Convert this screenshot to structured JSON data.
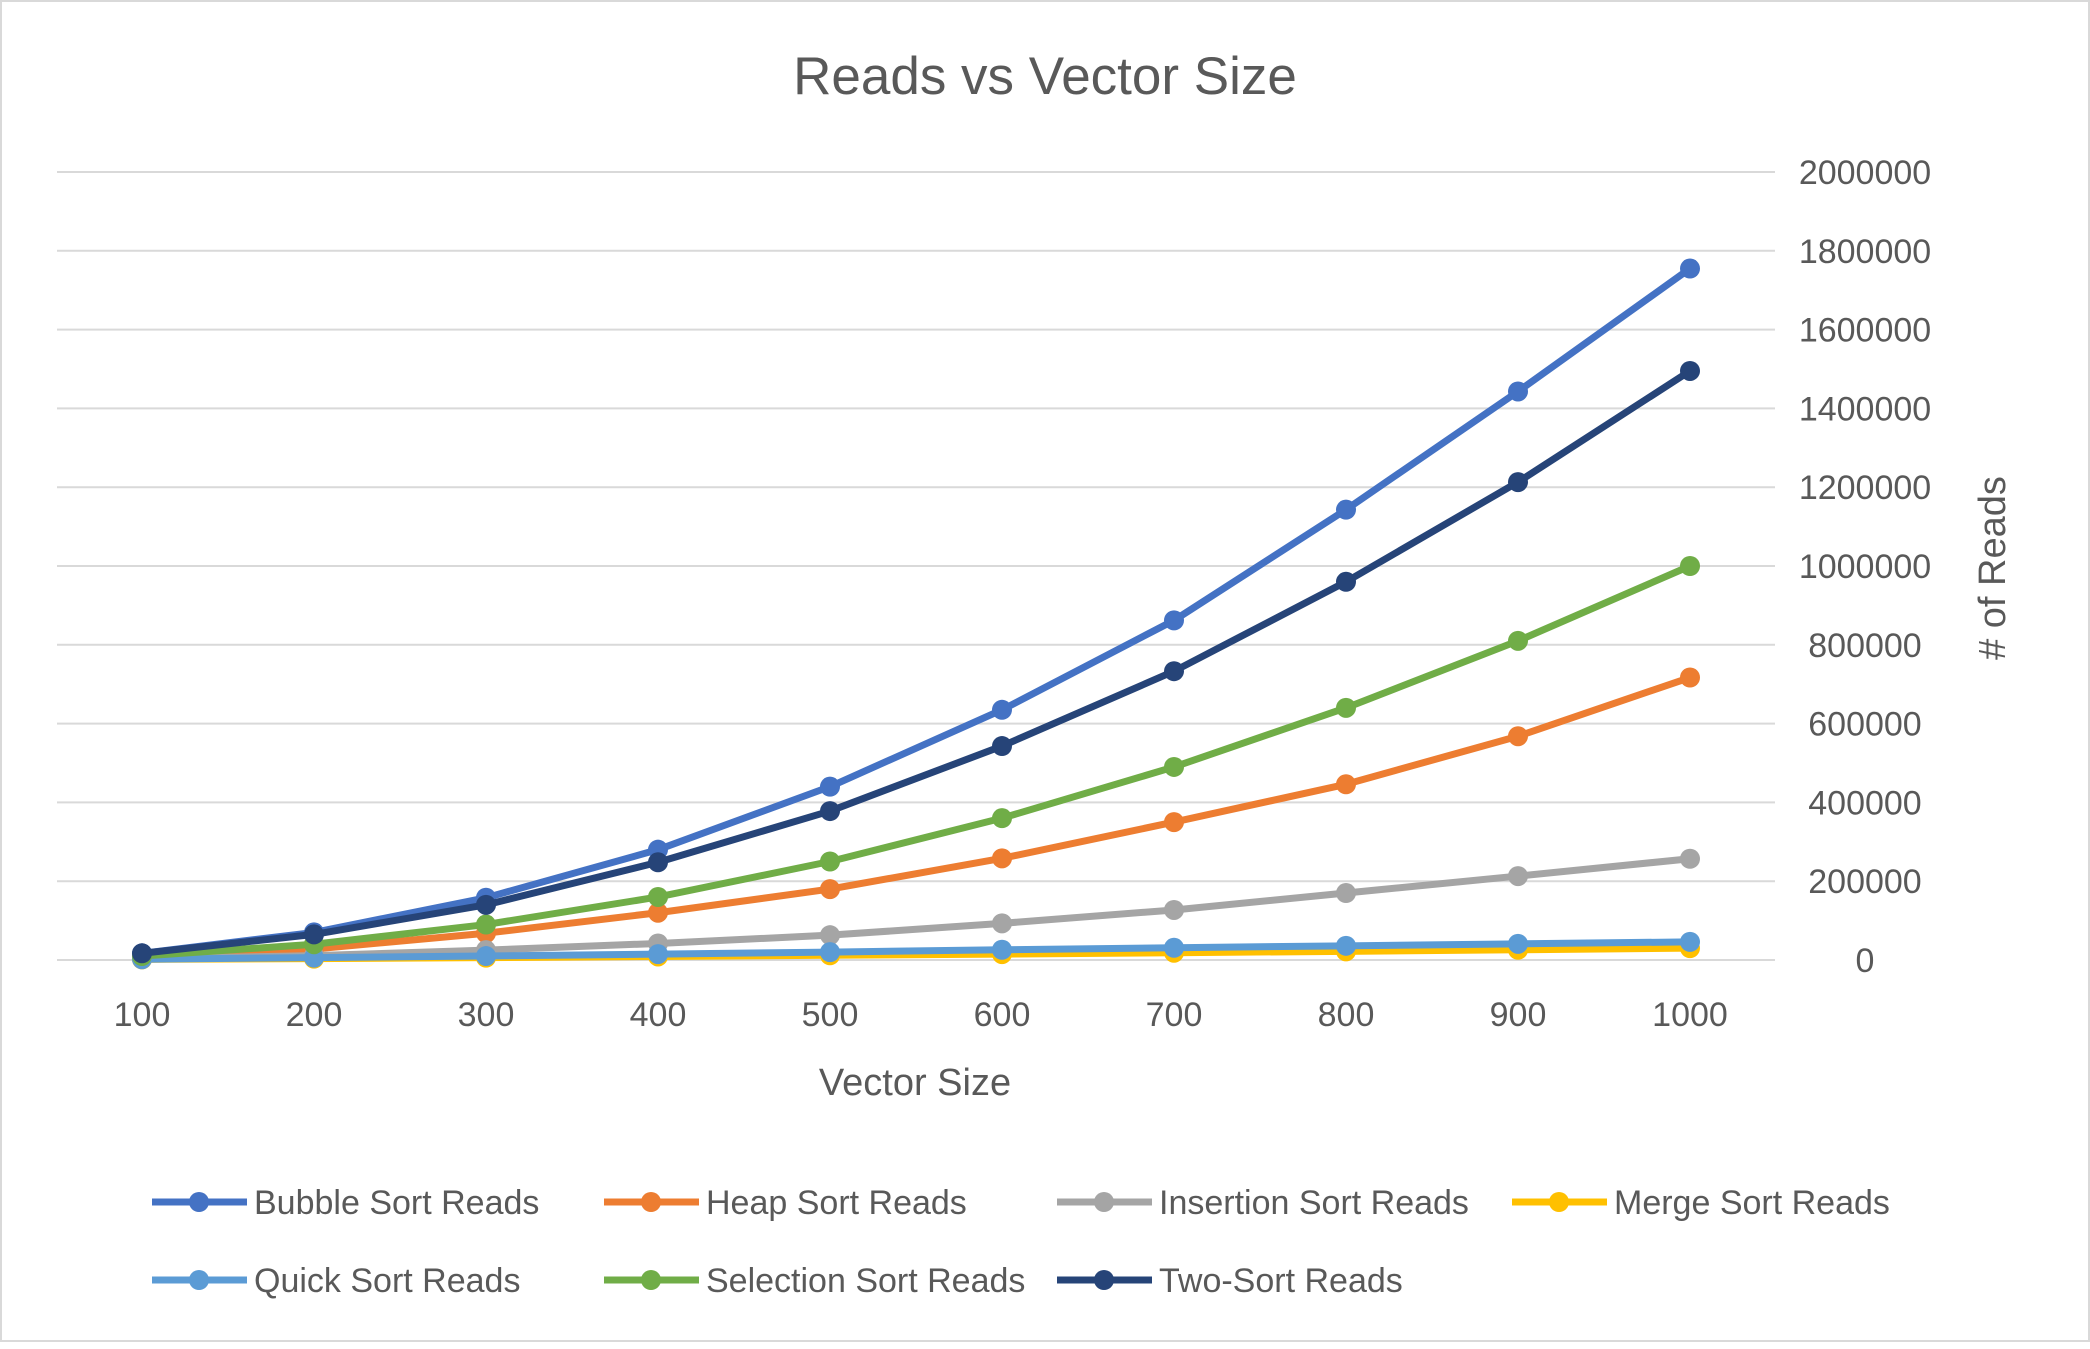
{
  "chart_data": {
    "type": "line",
    "title": "Reads vs Vector Size",
    "xlabel": "Vector Size",
    "ylabel": "# of Reads",
    "x": [
      100,
      200,
      300,
      400,
      500,
      600,
      700,
      800,
      900,
      1000
    ],
    "x_tick_labels": [
      "100",
      "200",
      "300",
      "400",
      "500",
      "600",
      "700",
      "800",
      "900",
      "1000"
    ],
    "y_tick_labels": [
      "0",
      "200000",
      "400000",
      "600000",
      "800000",
      "1000000",
      "1200000",
      "1400000",
      "1600000",
      "1800000",
      "2000000"
    ],
    "ylim": [
      0,
      2000000
    ],
    "y_axis_side": "right",
    "grid": "horizontal",
    "legend_position": "bottom",
    "series": [
      {
        "name": "Bubble Sort Reads",
        "color": "#4472C4",
        "values": [
          17000,
          70000,
          158000,
          280000,
          440000,
          635000,
          862000,
          1143000,
          1443000,
          1755000
        ]
      },
      {
        "name": "Heap Sort Reads",
        "color": "#ED7D31",
        "values": [
          5000,
          28000,
          68000,
          120000,
          180000,
          258000,
          350000,
          446000,
          568000,
          717000
        ]
      },
      {
        "name": "Insertion Sort Reads",
        "color": "#A5A5A5",
        "values": [
          3000,
          11000,
          25000,
          42000,
          63000,
          93000,
          127000,
          170000,
          213000,
          257000
        ]
      },
      {
        "name": "Merge Sort Reads",
        "color": "#FFC000",
        "values": [
          1500,
          3500,
          6000,
          9000,
          12000,
          15000,
          18500,
          22000,
          26000,
          30000
        ]
      },
      {
        "name": "Quick Sort Reads",
        "color": "#5B9BD5",
        "values": [
          2000,
          6000,
          10000,
          15000,
          20000,
          26000,
          31000,
          36000,
          41000,
          46000
        ]
      },
      {
        "name": "Selection Sort Reads",
        "color": "#70AD47",
        "values": [
          10000,
          40000,
          90000,
          160000,
          250000,
          360000,
          490000,
          640000,
          810000,
          1000000
        ]
      },
      {
        "name": "Two-Sort Reads",
        "color": "#264478",
        "values": [
          17000,
          65000,
          140000,
          248000,
          378000,
          543000,
          733000,
          960000,
          1213000,
          1495000
        ]
      }
    ]
  }
}
